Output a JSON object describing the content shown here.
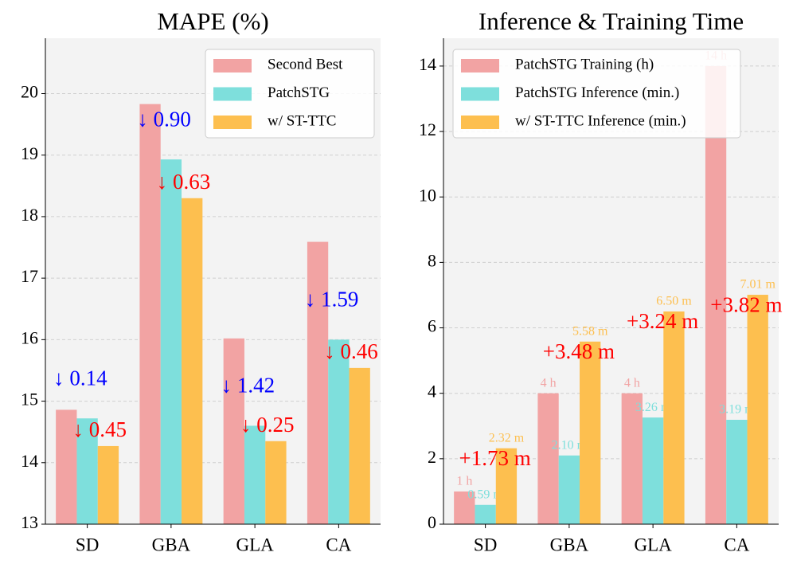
{
  "chart_data": [
    {
      "type": "bar",
      "title": "MAPE (%)",
      "categories": [
        "SD",
        "GBA",
        "GLA",
        "CA"
      ],
      "series": [
        {
          "name": "Second Best",
          "color": "#f2a3a3",
          "values": [
            14.86,
            19.83,
            16.02,
            17.59
          ]
        },
        {
          "name": "PatchSTG",
          "color": "#7edfdc",
          "values": [
            14.72,
            18.93,
            14.6,
            16.0
          ]
        },
        {
          "name": "w/ ST-TTC",
          "color": "#fdbf4f",
          "values": [
            14.27,
            18.3,
            14.35,
            15.54
          ]
        }
      ],
      "annotations": [
        {
          "text": "↓ 0.14",
          "color": "#0000ff"
        },
        {
          "text": "↓ 0.45",
          "color": "#ff0000"
        },
        {
          "text": "↓ 0.90",
          "color": "#0000ff"
        },
        {
          "text": "↓ 0.63",
          "color": "#ff0000"
        },
        {
          "text": "↓ 1.42",
          "color": "#0000ff"
        },
        {
          "text": "↓ 0.25",
          "color": "#ff0000"
        },
        {
          "text": "↓ 1.59",
          "color": "#0000ff"
        },
        {
          "text": "↓ 0.46",
          "color": "#ff0000"
        }
      ],
      "ylim": [
        13,
        20.9
      ],
      "yticks": [
        13,
        14,
        15,
        16,
        17,
        18,
        19,
        20
      ],
      "grid": true,
      "legend": "upper right"
    },
    {
      "type": "bar",
      "title": "Inference & Training Time",
      "categories": [
        "SD",
        "GBA",
        "GLA",
        "CA"
      ],
      "series": [
        {
          "name": "PatchSTG Training (h)",
          "color": "#f2a3a3",
          "values": [
            1,
            4,
            4,
            14
          ],
          "value_labels": [
            "1 h",
            "4 h",
            "4 h",
            "14 h"
          ]
        },
        {
          "name": "PatchSTG Inference (min.)",
          "color": "#7edfdc",
          "values": [
            0.59,
            2.1,
            3.26,
            3.19
          ],
          "value_labels": [
            "0.59 m",
            "2.10 m",
            "3.26 m",
            "3.19 m"
          ]
        },
        {
          "name": "w/ ST-TTC Inference (min.)",
          "color": "#fdbf4f",
          "values": [
            2.32,
            5.58,
            6.5,
            7.01
          ],
          "value_labels": [
            "2.32 m",
            "5.58 m",
            "6.50 m",
            "7.01 m"
          ]
        }
      ],
      "annotations": [
        {
          "text": "+1.73 m",
          "color": "#ff0000"
        },
        {
          "text": "+3.48 m",
          "color": "#ff0000"
        },
        {
          "text": "+3.24 m",
          "color": "#ff0000"
        },
        {
          "text": "+3.82 m",
          "color": "#ff0000"
        }
      ],
      "ylim": [
        0,
        14.85
      ],
      "yticks": [
        0,
        2,
        4,
        6,
        8,
        10,
        12,
        14
      ],
      "grid": true,
      "legend": "upper left"
    }
  ]
}
